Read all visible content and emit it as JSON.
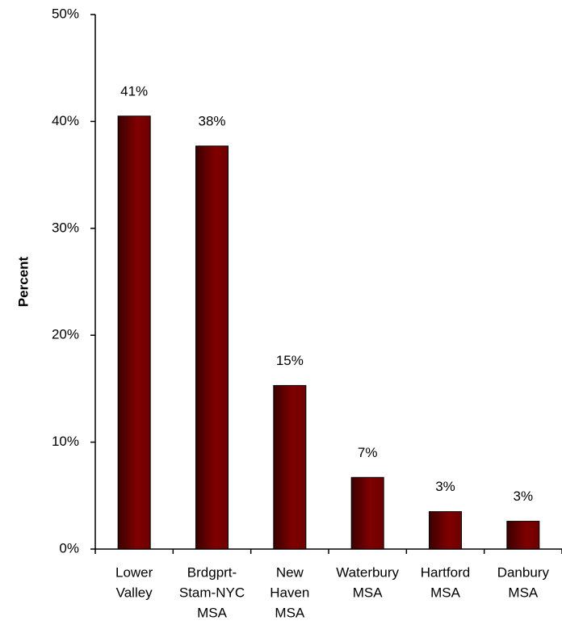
{
  "chart_data": {
    "type": "bar",
    "y_label": "Percent",
    "categories": [
      [
        "Lower",
        "Valley"
      ],
      [
        "Brdgprt-",
        "Stam-NYC",
        "MSA"
      ],
      [
        "New",
        "Haven",
        "MSA"
      ],
      [
        "Waterbury",
        "MSA"
      ],
      [
        "Hartford",
        "MSA"
      ],
      [
        "Danbury",
        "MSA"
      ]
    ],
    "values": [
      40.5,
      37.7,
      15.3,
      6.7,
      3.5,
      2.6
    ],
    "value_labels": [
      "41%",
      "38%",
      "15%",
      "7%",
      "3%",
      "3%"
    ],
    "color": "#800000",
    "ylim": [
      0,
      50
    ],
    "yticks": [
      {
        "value": 0,
        "label": "0%"
      },
      {
        "value": 10,
        "label": "10%"
      },
      {
        "value": 20,
        "label": "20%"
      },
      {
        "value": 30,
        "label": "30%"
      },
      {
        "value": 40,
        "label": "40%"
      },
      {
        "value": 50,
        "label": "50%"
      }
    ],
    "grid": false
  }
}
